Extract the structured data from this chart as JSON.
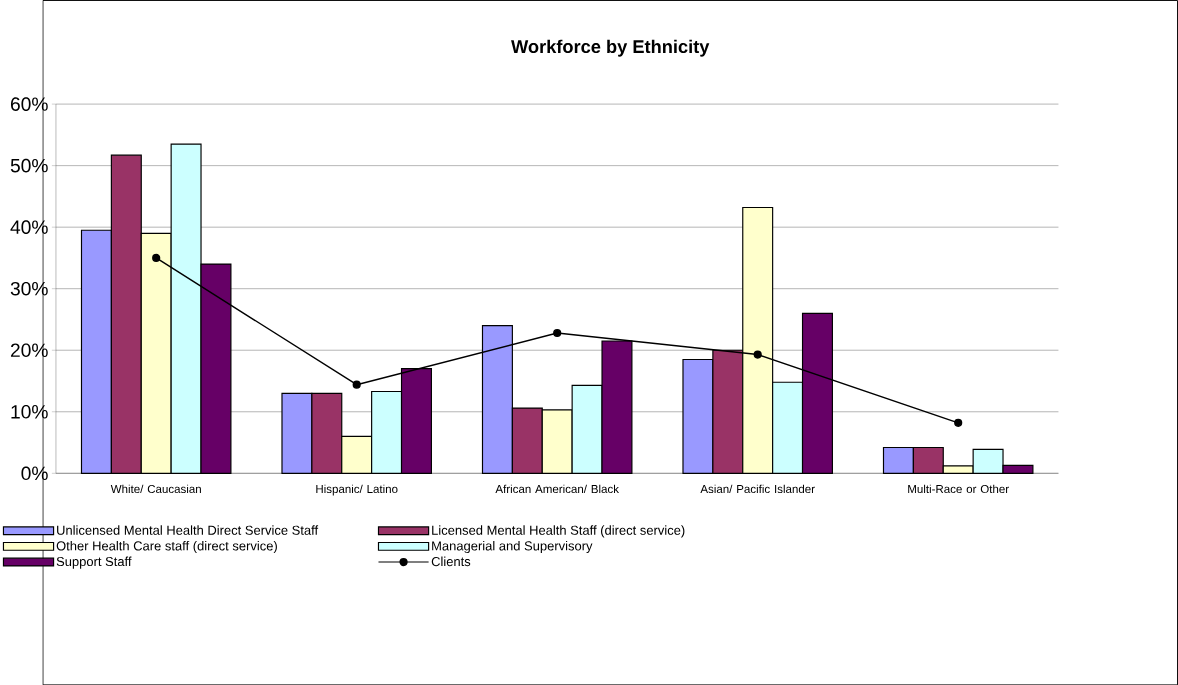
{
  "chart_data": {
    "type": "bar",
    "title": "Workforce by Ethnicity",
    "categories": [
      "White/ Caucasian",
      "Hispanic/ Latino",
      "African American/ Black",
      "Asian/ Pacific Islander",
      "Multi-Race or Other"
    ],
    "series": [
      {
        "name": "Unlicensed Mental Health Direct Service Staff",
        "color": "#9999ff",
        "values": [
          39.5,
          13,
          24,
          18.5,
          4.2
        ]
      },
      {
        "name": "Licensed Mental Health Staff (direct service)",
        "color": "#993366",
        "values": [
          51.7,
          13,
          10.6,
          20,
          4.2
        ]
      },
      {
        "name": "Other Health Care staff (direct service)",
        "color": "#ffffcc",
        "values": [
          39,
          6,
          10.3,
          43.2,
          1.2
        ]
      },
      {
        "name": "Managerial and Supervisory",
        "color": "#ccffff",
        "values": [
          53.5,
          13.3,
          14.3,
          14.8,
          3.9
        ]
      },
      {
        "name": "Support Staff",
        "color": "#660066",
        "values": [
          34,
          17,
          21.5,
          26,
          1.3
        ]
      },
      {
        "name": "Clients",
        "color": "#000000",
        "type": "line",
        "marker": "circle",
        "values": [
          35,
          14.4,
          22.8,
          19.3,
          8.2
        ]
      }
    ],
    "ylim": [
      0,
      60
    ],
    "yticks": [
      {
        "value": 0,
        "label": "0%"
      },
      {
        "value": 10,
        "label": "10%"
      },
      {
        "value": 20,
        "label": "20%"
      },
      {
        "value": 30,
        "label": "30%"
      },
      {
        "value": 40,
        "label": "40%"
      },
      {
        "value": 50,
        "label": "50%"
      },
      {
        "value": 60,
        "label": "60%"
      }
    ],
    "grid": "y",
    "legend": "bottom"
  }
}
